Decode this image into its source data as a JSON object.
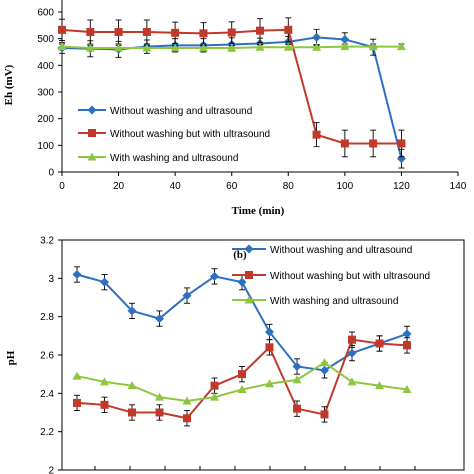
{
  "colors": {
    "blue": "#2E6FC0",
    "red": "#C0392B",
    "green": "#8DC63F"
  },
  "chart_data": [
    {
      "type": "line",
      "panel_label": "",
      "xlabel": "Time (min)",
      "ylabel": "Eh (mV)",
      "xlim": [
        0,
        140
      ],
      "ylim": [
        0,
        600
      ],
      "x_ticks": [
        "0",
        "20",
        "40",
        "60",
        "80",
        "100",
        "120",
        "140"
      ],
      "y_ticks": [
        "0",
        "100",
        "200",
        "300",
        "400",
        "500",
        "600"
      ],
      "x_tick_values": [
        0,
        20,
        40,
        60,
        80,
        100,
        120,
        140
      ],
      "y_tick_values": [
        0,
        100,
        200,
        300,
        400,
        500,
        600
      ],
      "legend_position": "left",
      "series": [
        {
          "name": "Without washing and ultrasound",
          "color": "#2E6FC0",
          "marker": "diamond",
          "x": [
            0,
            10,
            20,
            30,
            40,
            50,
            60,
            70,
            80,
            90,
            100,
            110,
            120
          ],
          "y": [
            465,
            462,
            460,
            470,
            475,
            475,
            478,
            482,
            488,
            505,
            497,
            468,
            50
          ],
          "err": [
            20,
            30,
            30,
            25,
            25,
            25,
            25,
            20,
            20,
            30,
            25,
            30,
            35
          ]
        },
        {
          "name": "Without washing but with ultrasound",
          "color": "#C0392B",
          "marker": "square",
          "x": [
            0,
            10,
            20,
            30,
            40,
            50,
            60,
            70,
            80,
            90,
            100,
            110,
            120
          ],
          "y": [
            533,
            525,
            525,
            525,
            522,
            520,
            523,
            530,
            533,
            140,
            107,
            107,
            107
          ],
          "err": [
            40,
            45,
            45,
            45,
            40,
            40,
            40,
            45,
            45,
            45,
            50,
            50,
            50
          ]
        },
        {
          "name": "With washing and ultrasound",
          "color": "#8DC63F",
          "marker": "triangle",
          "x": [
            0,
            10,
            20,
            30,
            40,
            50,
            60,
            70,
            80,
            90,
            100,
            110,
            120
          ],
          "y": [
            470,
            465,
            465,
            465,
            465,
            465,
            465,
            468,
            468,
            468,
            470,
            470,
            470
          ],
          "err": [
            10,
            10,
            10,
            10,
            10,
            10,
            10,
            10,
            10,
            10,
            10,
            10,
            10
          ]
        }
      ]
    },
    {
      "type": "line",
      "panel_label": "(b)",
      "xlabel": "",
      "ylabel": "pH",
      "ylim": [
        2,
        3.2
      ],
      "y_ticks": [
        "2",
        "2.2",
        "2.4",
        "2.6",
        "2.8",
        "3",
        "3.2"
      ],
      "y_tick_values": [
        2,
        2.2,
        2.4,
        2.6,
        2.8,
        3,
        3.2
      ],
      "legend_position": "top-right",
      "series": [
        {
          "name": "Without washing and ultrasound",
          "color": "#2E6FC0",
          "marker": "diamond",
          "y": [
            3.02,
            2.98,
            2.83,
            2.79,
            2.91,
            3.01,
            2.98,
            2.72,
            2.54,
            2.52,
            2.61,
            2.66,
            2.71
          ],
          "err": [
            0.04,
            0.04,
            0.04,
            0.04,
            0.04,
            0.04,
            0.04,
            0.04,
            0.04,
            0.04,
            0.04,
            0.04,
            0.04
          ]
        },
        {
          "name": "Without  washing but with ultrasound",
          "color": "#C0392B",
          "marker": "square",
          "y": [
            2.35,
            2.34,
            2.3,
            2.3,
            2.27,
            2.44,
            2.5,
            2.64,
            2.32,
            2.29,
            2.68,
            2.66,
            2.65
          ],
          "err": [
            0.04,
            0.04,
            0.04,
            0.04,
            0.04,
            0.04,
            0.04,
            0.04,
            0.04,
            0.04,
            0.04,
            0.04,
            0.04
          ]
        },
        {
          "name": "With washing and ultrasound",
          "color": "#8DC63F",
          "marker": "triangle",
          "y": [
            2.49,
            2.46,
            2.44,
            2.38,
            2.36,
            2.38,
            2.42,
            2.45,
            2.47,
            2.56,
            2.46,
            2.44,
            2.42
          ],
          "err": [
            0,
            0,
            0,
            0,
            0,
            0,
            0,
            0,
            0,
            0,
            0,
            0,
            0
          ]
        }
      ]
    }
  ]
}
